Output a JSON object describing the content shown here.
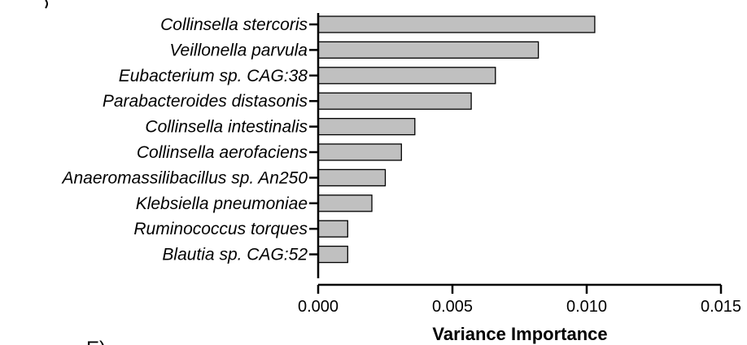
{
  "chart_data": {
    "type": "bar",
    "orientation": "horizontal",
    "categories": [
      "Collinsella stercoris",
      "Veillonella parvula",
      "Eubacterium sp. CAG:38",
      "Parabacteroides distasonis",
      "Collinsella intestinalis",
      "Collinsella aerofaciens",
      "Anaeromassilibacillus sp. An250",
      "Klebsiella pneumoniae",
      "Ruminococcus torques",
      "Blautia sp. CAG:52"
    ],
    "values": [
      0.0103,
      0.0082,
      0.0066,
      0.0057,
      0.0036,
      0.0031,
      0.0025,
      0.002,
      0.0011,
      0.0011
    ],
    "xlabel": "Variance Importance",
    "ylabel": "",
    "xlim": [
      0,
      0.015
    ],
    "xticks": [
      0,
      0.005,
      0.01,
      0.015
    ],
    "xtick_labels": [
      "0.000",
      "0.005",
      "0.010",
      "0.015"
    ],
    "grid": false,
    "bar_color": "#c0c0c0",
    "bar_edge_color": "#000000"
  },
  "panel_labels": {
    "bottom": "E)"
  }
}
